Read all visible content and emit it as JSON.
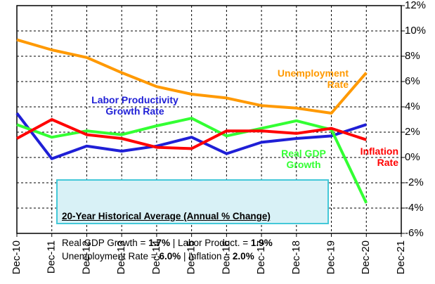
{
  "chart_data": {
    "type": "line",
    "categories": [
      "Dec-10",
      "Dec-11",
      "Dec-12",
      "Dec-13",
      "Dec-14",
      "Dec-15",
      "Dec-16",
      "Dec-17",
      "Dec-18",
      "Dec-19",
      "Dec-20",
      "Dec-21"
    ],
    "series": [
      {
        "name": "Unemployment Rate",
        "color": "#ff9900",
        "values": [
          9.3,
          8.5,
          7.9,
          6.7,
          5.6,
          5.0,
          4.7,
          4.1,
          3.9,
          3.5,
          6.7,
          null
        ]
      },
      {
        "name": "Labor Productivity Growth Rate",
        "color": "#1f1fd6",
        "values": [
          3.5,
          -0.1,
          0.9,
          0.5,
          0.9,
          1.6,
          0.3,
          1.2,
          1.5,
          1.7,
          2.6,
          null
        ]
      },
      {
        "name": "Real GDP Growth",
        "color": "#33ff33",
        "values": [
          2.6,
          1.6,
          2.1,
          1.8,
          2.5,
          3.1,
          1.7,
          2.3,
          2.9,
          2.2,
          -3.6,
          null
        ]
      },
      {
        "name": "Inflation Rate",
        "color": "#ff0000",
        "values": [
          1.5,
          3.0,
          1.8,
          1.5,
          0.8,
          0.7,
          2.1,
          2.1,
          1.9,
          2.3,
          1.4,
          null
        ]
      }
    ],
    "ylim": [
      -6,
      12
    ],
    "yticks": [
      {
        "value": -6,
        "label": "-6%"
      },
      {
        "value": -4,
        "label": "-4%"
      },
      {
        "value": -2,
        "label": "-2%"
      },
      {
        "value": 0,
        "label": "0%"
      },
      {
        "value": 2,
        "label": "2%"
      },
      {
        "value": 4,
        "label": "4%"
      },
      {
        "value": 6,
        "label": "6%"
      },
      {
        "value": 8,
        "label": "8%"
      },
      {
        "value": 10,
        "label": "10%"
      },
      {
        "value": 12,
        "label": "12%"
      }
    ],
    "grid": true,
    "annotation_box": {
      "title": "20-Year Historical Average (Annual % Change)",
      "lines": [
        [
          "Real GDP Growth = ",
          "1.7%",
          " | Labor Product. = ",
          "1.9%"
        ],
        [
          "Unemployment Rate = ",
          "6.0%",
          " | Inflation = ",
          "2.0%"
        ]
      ]
    }
  }
}
